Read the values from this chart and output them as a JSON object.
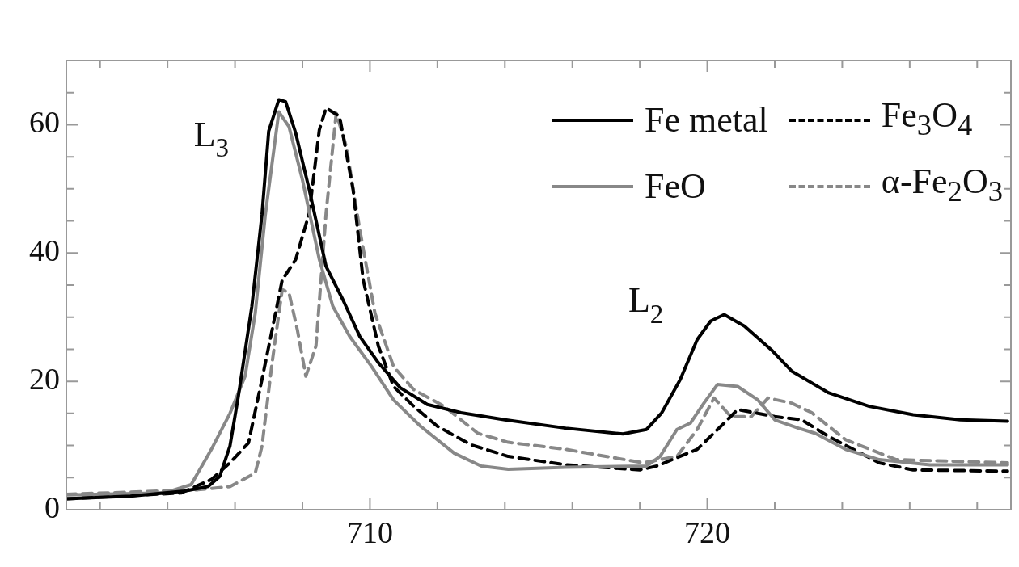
{
  "chart_data": {
    "type": "line",
    "xlim": [
      701,
      729
    ],
    "ylim": [
      0,
      70
    ],
    "xticks": [
      {
        "value": 702,
        "label": null
      },
      {
        "value": 704,
        "label": null
      },
      {
        "value": 706,
        "label": null
      },
      {
        "value": 708,
        "label": null
      },
      710,
      {
        "value": 712,
        "label": null
      },
      {
        "value": 714,
        "label": null
      },
      {
        "value": 716,
        "label": null
      },
      {
        "value": 718,
        "label": null
      },
      720,
      {
        "value": 722,
        "label": null
      },
      {
        "value": 724,
        "label": null
      },
      {
        "value": 726,
        "label": null
      },
      {
        "value": 728,
        "label": null
      }
    ],
    "yticks": [
      0,
      {
        "value": 5,
        "label": null
      },
      {
        "value": 10,
        "label": null
      },
      {
        "value": 15,
        "label": null
      },
      20,
      {
        "value": 25,
        "label": null
      },
      {
        "value": 30,
        "label": null
      },
      {
        "value": 35,
        "label": null
      },
      40,
      {
        "value": 45,
        "label": null
      },
      {
        "value": 50,
        "label": null
      },
      {
        "value": 55,
        "label": null
      },
      60,
      {
        "value": 65,
        "label": null
      }
    ],
    "legend": "top right",
    "marker": "none",
    "annotations": [
      "L$_{3}$",
      "L$_{2}$"
    ],
    "series": [
      {
        "name": "Fe metal",
        "color": "#000000",
        "line_style": "solid",
        "x": [
          701,
          702.9,
          704.5,
          705.2,
          705.55,
          705.85,
          706.1,
          706.5,
          706.8,
          707.0,
          707.3,
          707.5,
          707.8,
          708.2,
          708.7,
          709.2,
          709.7,
          710.25,
          710.9,
          711.7,
          712.7,
          714.0,
          715.8,
          717.5,
          718.2,
          718.65,
          719.2,
          719.7,
          720.1,
          720.5,
          721.1,
          721.9,
          722.5,
          723.6,
          724.8,
          726.1,
          727.5,
          728.9
        ],
        "values": [
          1.7,
          2.1,
          2.9,
          3.6,
          5.2,
          9.9,
          17.7,
          31.7,
          46,
          59,
          63.9,
          63.6,
          58.7,
          49.9,
          37.9,
          32.7,
          27,
          22.9,
          19,
          16.4,
          15.1,
          14,
          12.7,
          11.8,
          12.5,
          15.1,
          20.3,
          26.5,
          29.4,
          30.4,
          28.6,
          24.9,
          21.6,
          18.2,
          16.1,
          14.8,
          14,
          13.8
        ]
      },
      {
        "name": "FeO",
        "color": "#888888",
        "line_style": "solid",
        "x": [
          701,
          703.9,
          704.7,
          705.3,
          705.85,
          706.3,
          706.6,
          706.9,
          707.2,
          707.3,
          707.6,
          708.0,
          708.5,
          708.9,
          709.4,
          710.05,
          710.7,
          711.5,
          712.5,
          713.3,
          714.1,
          715.8,
          718.2,
          718.6,
          719.1,
          719.5,
          719.9,
          720.3,
          720.9,
          721.5,
          722.0,
          722.7,
          723.2,
          724.1,
          725.1,
          726.6,
          728.9
        ],
        "values": [
          2.3,
          2.6,
          3.9,
          9.4,
          15,
          20.8,
          30.6,
          46,
          58,
          62,
          59.7,
          51.4,
          39,
          31.7,
          27,
          22.3,
          17.1,
          13,
          8.8,
          6.8,
          6.3,
          6.6,
          6.8,
          8.3,
          12.5,
          13.5,
          16.6,
          19.5,
          19.2,
          17.1,
          14,
          12.7,
          11.9,
          9.4,
          7.8,
          7,
          7
        ]
      },
      {
        "name": "Fe$_{3}$O$_{4}$",
        "color": "#000000",
        "line_style": "dashed",
        "x": [
          701,
          704.4,
          705.3,
          705.85,
          706.4,
          706.8,
          707.1,
          707.4,
          707.8,
          708.2,
          708.5,
          708.7,
          709.1,
          709.5,
          709.8,
          710.25,
          710.7,
          711.3,
          712.0,
          713.0,
          714.1,
          715.8,
          718.0,
          718.5,
          719.7,
          720.5,
          720.9,
          722.0,
          722.8,
          723.6,
          725.1,
          726.1,
          728.9
        ],
        "values": [
          1.7,
          2.6,
          4.7,
          7.3,
          10.4,
          20.3,
          28,
          35.8,
          39,
          46.2,
          59.2,
          62.6,
          61.3,
          49.9,
          35.8,
          25.5,
          19.2,
          16.1,
          13,
          10.1,
          8.3,
          7,
          6.2,
          6.8,
          9.4,
          13.5,
          15.6,
          14.5,
          14,
          11.4,
          7.3,
          6.2,
          6
        ]
      },
      {
        "name": "α-Fe$_{2}$O$_{3}$",
        "color": "#888888",
        "line_style": "dashed",
        "x": [
          701,
          704.9,
          705.85,
          706.6,
          706.8,
          707.1,
          707.4,
          707.6,
          707.85,
          708.1,
          708.4,
          708.7,
          709.0,
          709.3,
          709.7,
          710.15,
          710.7,
          711.3,
          712.2,
          713.2,
          714.1,
          715.8,
          718.1,
          719.1,
          719.7,
          720.2,
          720.7,
          721.3,
          721.8,
          722.5,
          723.1,
          724.1,
          725.6,
          728.9
        ],
        "values": [
          2.4,
          3.1,
          3.6,
          5.7,
          9.9,
          22.9,
          34.3,
          33.8,
          28,
          20.8,
          25.5,
          46.2,
          61.8,
          56.6,
          43.6,
          30.6,
          22.3,
          18.7,
          16.1,
          11.9,
          10.5,
          9.4,
          7.3,
          8.3,
          12.5,
          17.4,
          14.5,
          14.5,
          17.4,
          16.6,
          15.1,
          10.9,
          7.8,
          7.3
        ]
      }
    ]
  }
}
